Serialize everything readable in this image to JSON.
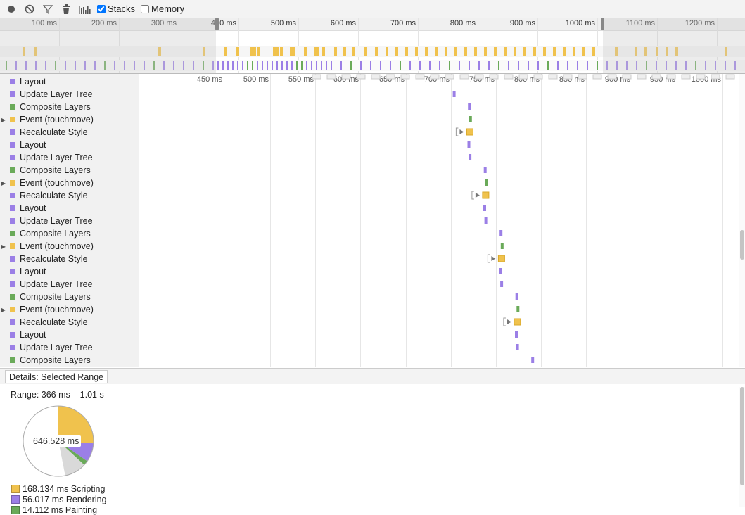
{
  "toolbar": {
    "stacks_label": "Stacks",
    "memory_label": "Memory",
    "stacks_checked": true,
    "memory_checked": false
  },
  "overview": {
    "ruler_labels": [
      "100 ms",
      "200 ms",
      "300 ms",
      "400 ms",
      "500 ms",
      "600 ms",
      "700 ms",
      "800 ms",
      "900 ms",
      "1000 ms",
      "1100 ms",
      "1200 ms"
    ]
  },
  "flame": {
    "ruler_labels": [
      "450 ms",
      "500 ms",
      "550 ms",
      "600 ms",
      "650 ms",
      "700 ms",
      "750 ms",
      "800 ms",
      "850 ms",
      "900 ms",
      "950 ms",
      "1000 ms"
    ]
  },
  "rows": [
    {
      "label": "Layout",
      "color": "#9b7fe6",
      "expandable": false
    },
    {
      "label": "Update Layer Tree",
      "color": "#9b7fe6",
      "expandable": false
    },
    {
      "label": "Composite Layers",
      "color": "#6aaa59",
      "expandable": false
    },
    {
      "label": "Event (touchmove)",
      "color": "#f0c24d",
      "expandable": true
    },
    {
      "label": "Recalculate Style",
      "color": "#9b7fe6",
      "expandable": false
    },
    {
      "label": "Layout",
      "color": "#9b7fe6",
      "expandable": false
    },
    {
      "label": "Update Layer Tree",
      "color": "#9b7fe6",
      "expandable": false
    },
    {
      "label": "Composite Layers",
      "color": "#6aaa59",
      "expandable": false
    },
    {
      "label": "Event (touchmove)",
      "color": "#f0c24d",
      "expandable": true
    },
    {
      "label": "Recalculate Style",
      "color": "#9b7fe6",
      "expandable": false
    },
    {
      "label": "Layout",
      "color": "#9b7fe6",
      "expandable": false
    },
    {
      "label": "Update Layer Tree",
      "color": "#9b7fe6",
      "expandable": false
    },
    {
      "label": "Composite Layers",
      "color": "#6aaa59",
      "expandable": false
    },
    {
      "label": "Event (touchmove)",
      "color": "#f0c24d",
      "expandable": true
    },
    {
      "label": "Recalculate Style",
      "color": "#9b7fe6",
      "expandable": false
    },
    {
      "label": "Layout",
      "color": "#9b7fe6",
      "expandable": false
    },
    {
      "label": "Update Layer Tree",
      "color": "#9b7fe6",
      "expandable": false
    },
    {
      "label": "Composite Layers",
      "color": "#6aaa59",
      "expandable": false
    },
    {
      "label": "Event (touchmove)",
      "color": "#f0c24d",
      "expandable": true
    },
    {
      "label": "Recalculate Style",
      "color": "#9b7fe6",
      "expandable": false
    },
    {
      "label": "Layout",
      "color": "#9b7fe6",
      "expandable": false
    },
    {
      "label": "Update Layer Tree",
      "color": "#9b7fe6",
      "expandable": false
    },
    {
      "label": "Composite Layers",
      "color": "#6aaa59",
      "expandable": false
    }
  ],
  "details": {
    "tab_label": "Details: Selected Range",
    "range_text": "Range: 366 ms – 1.01 s",
    "total_label": "646.528 ms",
    "legend": [
      {
        "text": "168.134 ms Scripting",
        "color": "#f0c24d"
      },
      {
        "text": "56.017 ms Rendering",
        "color": "#9b7fe6"
      },
      {
        "text": "14.112 ms Painting",
        "color": "#6aaa59"
      }
    ]
  },
  "chart_data": {
    "type": "pie",
    "total_ms": 646.528,
    "slices": [
      {
        "name": "Scripting",
        "value": 168.134,
        "color": "#f0c24d"
      },
      {
        "name": "Rendering",
        "value": 56.017,
        "color": "#9b7fe6"
      },
      {
        "name": "Painting",
        "value": 14.112,
        "color": "#6aaa59"
      },
      {
        "name": "Other",
        "value": 65,
        "color": "#d9d9d9"
      },
      {
        "name": "Idle",
        "value": 343.265,
        "color": "#ffffff"
      }
    ]
  },
  "colors": {
    "scripting": "#f0c24d",
    "rendering": "#9b7fe6",
    "painting": "#6aaa59"
  }
}
